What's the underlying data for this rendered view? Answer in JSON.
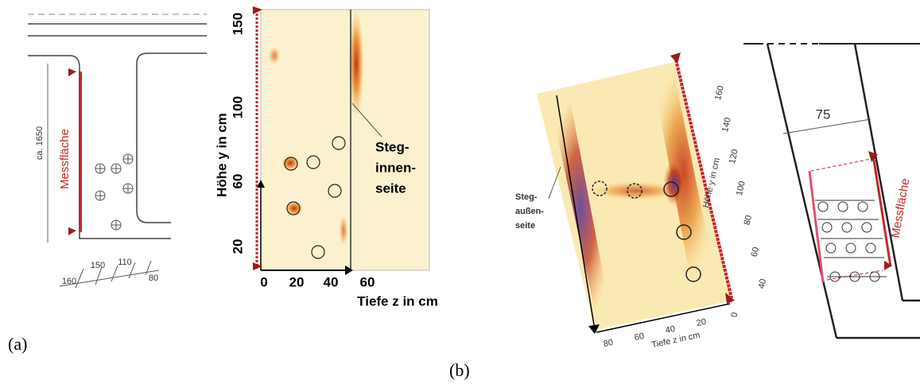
{
  "panel_a": {
    "label": "(a)",
    "drawing": {
      "measure_label": "Messfläche",
      "length_label": "ca. 1650",
      "dims": [
        "160",
        "150",
        "110",
        "80"
      ]
    },
    "scan": {
      "y_axis_title": "Höhe y in cm",
      "yticks": [
        "150",
        "100",
        "60",
        "20"
      ],
      "x_axis_title": "Tiefe z in cm",
      "xticks": [
        "0",
        "20",
        "40",
        "60"
      ],
      "annotation": [
        "Steg-",
        "innen-",
        "seite"
      ]
    }
  },
  "panel_b": {
    "label": "(b)",
    "scan": {
      "y_axis_title": "Höhe y in cm",
      "yticks": [
        "160",
        "140",
        "120",
        "100",
        "80",
        "60",
        "40"
      ],
      "x_axis_title": "Tiefe z in cm",
      "xticks": [
        "80",
        "60",
        "40",
        "20",
        "0"
      ],
      "annotation": [
        "Steg-",
        "außen-",
        "seite"
      ]
    },
    "drawing": {
      "width_label": "75",
      "measure_label": "Messfläche"
    }
  }
}
